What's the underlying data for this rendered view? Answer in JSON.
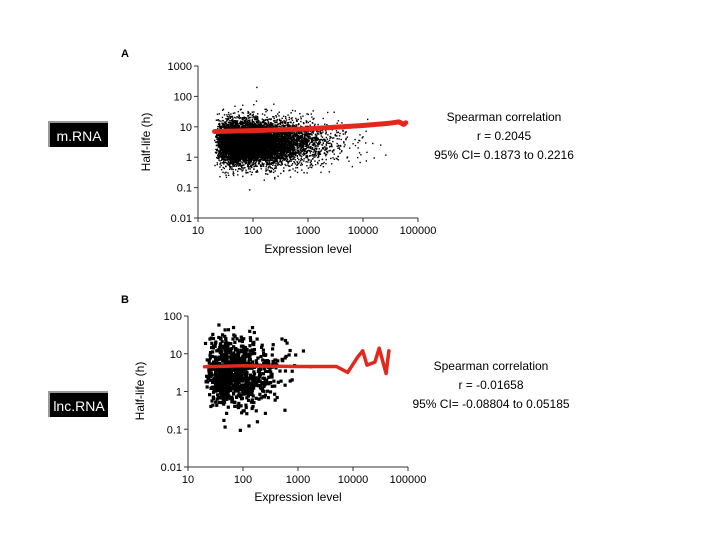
{
  "labels": {
    "mrna": "m.RNA",
    "lncrna": "lnc.RNA"
  },
  "colors": {
    "trend": "#e3271c",
    "points": "#000000"
  },
  "chart_data": [
    {
      "type": "scatter",
      "panel": "A",
      "xlabel": "Expression level",
      "ylabel": "Half-life (h)",
      "x_scale": "log",
      "y_scale": "log",
      "xlim": [
        10,
        100000
      ],
      "ylim": [
        0.01,
        1000
      ],
      "x_ticks": [
        "10",
        "100",
        "1000",
        "10000",
        "100000"
      ],
      "y_ticks": [
        "0.01",
        "0.1",
        "1",
        "10",
        "100",
        "1000"
      ],
      "annotation": [
        "Spearman correlation",
        "r = 0.2045",
        "95% CI= 0.1873 to 0.2216"
      ],
      "cloud": {
        "x_range": [
          20,
          60000
        ],
        "center_y": 3,
        "count": 9000
      },
      "trend": [
        [
          20,
          7
        ],
        [
          100,
          7.5
        ],
        [
          1000,
          8.5
        ],
        [
          10000,
          11
        ],
        [
          30000,
          13
        ],
        [
          45000,
          14.5
        ],
        [
          55000,
          12
        ],
        [
          60000,
          13.5
        ]
      ]
    },
    {
      "type": "scatter",
      "panel": "B",
      "xlabel": "Expression level",
      "ylabel": "Half-life (h)",
      "x_scale": "log",
      "y_scale": "log",
      "xlim": [
        10,
        100000
      ],
      "ylim": [
        0.01,
        100
      ],
      "x_ticks": [
        "10",
        "100",
        "1000",
        "10000",
        "100000"
      ],
      "y_ticks": [
        "0.01",
        "0.1",
        "1",
        "10",
        "100"
      ],
      "annotation": [
        "Spearman correlation",
        "r = -0.01658",
        "95% CI= -0.08804 to 0.05185"
      ],
      "cloud": {
        "x_range": [
          20,
          20000
        ],
        "center_y": 3,
        "count": 900
      },
      "trend": [
        [
          20,
          4.5
        ],
        [
          100,
          4.8
        ],
        [
          1000,
          4.6
        ],
        [
          5000,
          4.6
        ],
        [
          8000,
          3.2
        ],
        [
          12000,
          8
        ],
        [
          15000,
          12
        ],
        [
          18000,
          5
        ],
        [
          25000,
          6
        ],
        [
          30000,
          14
        ],
        [
          40000,
          3
        ],
        [
          45000,
          12
        ]
      ]
    }
  ]
}
